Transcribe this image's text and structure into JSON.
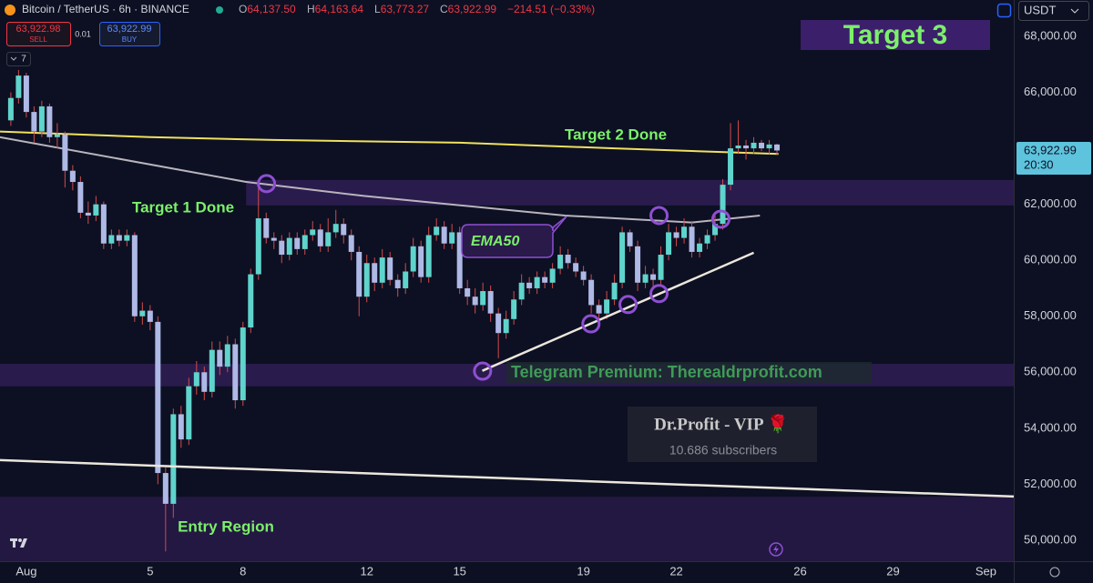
{
  "header": {
    "symbol": "Bitcoin / TetherUS · 6h · BINANCE",
    "ohlc": [
      "O",
      "64,137.50",
      "H",
      "64,163.64",
      "L",
      "63,773.27",
      "C",
      "63,922.99",
      "−214.51 (−0.33%)"
    ],
    "sell_price": "63,922.98",
    "sell": "SELL",
    "spread": "0.01",
    "buy_price": "63,922.99",
    "buy": "BUY",
    "indicators": "7",
    "currency": "USDT",
    "price_tag": "63,922.99",
    "countdown": "20:30"
  },
  "chart_data": {
    "type": "candlestick",
    "x": [
      0.5,
      0.75,
      1,
      1.25,
      1.5,
      1.75,
      2,
      2.25,
      2.5,
      2.75,
      3,
      3.25,
      3.5,
      3.75,
      4,
      4.25,
      4.5,
      4.75,
      5,
      5.25,
      5.5,
      5.75,
      6,
      6.25,
      6.5,
      6.75,
      7,
      7.25,
      7.5,
      7.75,
      8,
      8.25,
      8.5,
      8.75,
      9,
      9.25,
      9.5,
      9.75,
      10,
      10.25,
      10.5,
      10.75,
      11,
      11.25,
      11.5,
      11.75,
      12,
      12.25,
      12.5,
      12.75,
      13,
      13.25,
      13.5,
      13.75,
      14,
      14.25,
      14.5,
      14.75,
      15,
      15.25,
      15.5,
      15.75,
      16,
      16.25,
      16.5,
      16.75,
      17,
      17.25,
      17.5,
      17.75,
      18,
      18.25,
      18.5,
      18.75,
      19,
      19.25,
      19.5,
      19.75,
      20,
      20.25,
      20.5,
      20.75,
      21,
      21.25,
      21.5,
      21.75,
      22,
      22.25,
      22.5,
      22.75,
      23,
      23.25,
      23.5,
      23.75,
      24,
      24.25,
      24.5,
      24.75,
      25,
      25.25
    ],
    "open": [
      65000,
      65800,
      66600,
      65300,
      64600,
      65500,
      64400,
      64500,
      63200,
      62800,
      61700,
      61600,
      62000,
      60600,
      60900,
      60700,
      60900,
      58000,
      58200,
      57800,
      52400,
      51300,
      54500,
      53600,
      55500,
      56000,
      55300,
      56800,
      56200,
      57000,
      55000,
      57600,
      59500,
      61500,
      60800,
      60700,
      60200,
      60800,
      60400,
      60900,
      61100,
      60500,
      61000,
      61300,
      60900,
      60300,
      58700,
      59900,
      59200,
      60100,
      59300,
      59000,
      59600,
      60500,
      59400,
      60900,
      61200,
      60600,
      61000,
      59000,
      58700,
      58400,
      58900,
      58100,
      57400,
      57900,
      58600,
      59200,
      59000,
      59400,
      59200,
      59700,
      60200,
      59900,
      59600,
      59300,
      58400,
      58100,
      58600,
      59200,
      61000,
      60500,
      59200,
      59500,
      59300,
      60200,
      61000,
      60800,
      61200,
      60300,
      60600,
      60900,
      61300,
      62700,
      64000,
      64100,
      64000,
      64200,
      64000,
      64137.5
    ],
    "high": [
      66000,
      66800,
      66700,
      65500,
      65700,
      65600,
      64900,
      64600,
      63400,
      63000,
      62100,
      62300,
      62100,
      61100,
      61100,
      61100,
      61000,
      58500,
      58400,
      58000,
      52600,
      54700,
      54800,
      55800,
      56400,
      56200,
      57100,
      57100,
      57300,
      57200,
      57800,
      59700,
      62700,
      61700,
      61000,
      60900,
      61000,
      61000,
      61100,
      61400,
      61300,
      61500,
      61800,
      61500,
      61100,
      60500,
      60200,
      60100,
      60400,
      60300,
      59500,
      59900,
      60800,
      60700,
      61200,
      61500,
      61400,
      61300,
      61200,
      59300,
      59000,
      59200,
      59100,
      58300,
      58200,
      58900,
      59500,
      59400,
      59600,
      59600,
      59900,
      60500,
      60400,
      60100,
      59800,
      59500,
      58600,
      58900,
      59500,
      61200,
      61100,
      60700,
      59800,
      59700,
      60500,
      61300,
      61200,
      61500,
      61400,
      60800,
      61100,
      61600,
      62900,
      64900,
      65000,
      64300,
      64400,
      64300,
      64300,
      64163.64
    ],
    "low": [
      64800,
      65600,
      65100,
      64200,
      64400,
      64200,
      64000,
      62600,
      62500,
      61500,
      61300,
      61400,
      60400,
      60400,
      60500,
      60500,
      57800,
      57700,
      57500,
      52000,
      49600,
      50800,
      53300,
      53400,
      55200,
      55000,
      55100,
      55900,
      56000,
      54700,
      54800,
      57400,
      59300,
      60600,
      60400,
      59900,
      60000,
      60200,
      60200,
      60700,
      60300,
      60300,
      60800,
      60600,
      60000,
      58000,
      58500,
      58900,
      59000,
      59100,
      58700,
      58800,
      59400,
      59200,
      59200,
      60700,
      60400,
      60400,
      58800,
      58400,
      58100,
      58200,
      57800,
      56500,
      57200,
      57700,
      58400,
      58800,
      58800,
      59000,
      59000,
      59500,
      59700,
      59400,
      59100,
      58100,
      57900,
      57900,
      58400,
      59000,
      60300,
      58900,
      59000,
      59000,
      59100,
      60000,
      60500,
      60600,
      60100,
      60100,
      60400,
      60700,
      61100,
      62500,
      63800,
      63600,
      63800,
      63900,
      63800,
      63773.27
    ],
    "close": [
      65800,
      66600,
      65300,
      64600,
      65500,
      64400,
      64500,
      63200,
      62800,
      61700,
      61600,
      62000,
      60600,
      60900,
      60700,
      60900,
      58000,
      58200,
      57800,
      52400,
      51300,
      54500,
      53600,
      55500,
      56000,
      55300,
      56800,
      56200,
      57000,
      55000,
      57600,
      59500,
      61500,
      60800,
      60700,
      60200,
      60800,
      60400,
      60900,
      61100,
      60500,
      61000,
      61300,
      60900,
      60300,
      58700,
      59900,
      59200,
      60100,
      59300,
      59000,
      59600,
      60500,
      59400,
      60900,
      61200,
      60600,
      61000,
      59000,
      58700,
      58400,
      58900,
      58100,
      57400,
      57900,
      58600,
      59200,
      59000,
      59400,
      59200,
      59700,
      60200,
      59900,
      59600,
      59300,
      58400,
      58100,
      58600,
      59200,
      61000,
      60500,
      59200,
      59500,
      59300,
      60200,
      61000,
      60800,
      61200,
      60300,
      60600,
      60900,
      61300,
      62700,
      64000,
      64100,
      64000,
      64200,
      64000,
      64137.5,
      63922.99
    ],
    "up_color": "#5fd4cc",
    "down_color": "#aeb9e6",
    "wick_color": "#d34b4b",
    "xlim": [
      0.15,
      32.9
    ],
    "xticks": [
      {
        "value": 1,
        "label": "Aug"
      },
      5,
      8,
      12,
      15,
      19,
      22,
      26,
      29,
      {
        "value": 32,
        "label": "Sep"
      }
    ],
    "ylim": [
      49250,
      69300
    ],
    "yticks": [
      {
        "value": 50000,
        "label": "50,000.00"
      },
      {
        "value": 52000,
        "label": "52,000.00"
      },
      {
        "value": 54000,
        "label": "54,000.00"
      },
      {
        "value": 56000,
        "label": "56,000.00"
      },
      {
        "value": 58000,
        "label": "58,000.00"
      },
      {
        "value": 60000,
        "label": "60,000.00"
      },
      {
        "value": 62000,
        "label": "62,000.00"
      },
      {
        "value": 64000,
        "label": "64,000.00"
      },
      {
        "value": 66000,
        "label": "66,000.00"
      },
      {
        "value": 68000,
        "label": "68,000.00"
      }
    ],
    "zones": [
      {
        "from": 62870,
        "to": 61960,
        "start": 8.1,
        "color": "#2a1b4d"
      },
      {
        "from": 56300,
        "to": 55500,
        "color": "#2a1b4d"
      },
      {
        "from": 51550,
        "to": 49250,
        "color": "#231842"
      }
    ],
    "lines": [
      {
        "color": "#f0e060",
        "x": [
          0.15,
          5,
          9,
          15,
          20,
          25.3
        ],
        "values": [
          64600,
          64400,
          64300,
          64200,
          64000,
          63800
        ]
      },
      {
        "color": "#b9b4bd",
        "x": [
          0.15,
          8.1,
          11.9,
          18.4,
          22.5,
          24.7
        ],
        "values": [
          64400,
          62800,
          62300,
          61600,
          61350,
          61600
        ]
      }
    ],
    "trendlines": [
      {
        "color": "#ece6dc",
        "x": [
          15.73,
          24.5
        ],
        "values": [
          56050,
          60270
        ]
      },
      {
        "color": "#ece6dc",
        "x": [
          0.15,
          32.9
        ],
        "values": [
          52860,
          51560
        ]
      }
    ],
    "circles": {
      "color": "#8e4fd2",
      "x": [
        8.76,
        15.74,
        19.24,
        20.44,
        21.44,
        21.44,
        23.44
      ],
      "values": [
        62740,
        56040,
        57730,
        58420,
        58810,
        61600,
        61470
      ]
    },
    "annotations": {
      "target_1": "Target 1 Done",
      "target_2": "Target 2 Done",
      "target_3": "Target 3",
      "ema": "EMA50",
      "entry": "Entry Region",
      "telegram": "Telegram Premium: Therealdrprofit.com",
      "channel": "Dr.Profit - VIP 🌹",
      "subscribers": "10.686 subscribers"
    }
  }
}
